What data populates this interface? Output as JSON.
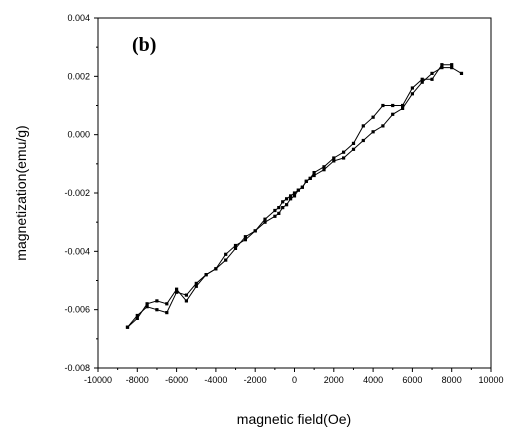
{
  "chart_data": {
    "type": "line",
    "panel_label": "(b)",
    "xlabel": "magnetic field(Oe)",
    "ylabel": "magnetization(emu/g)",
    "xlim": [
      -10000,
      10000
    ],
    "ylim": [
      -0.008,
      0.004
    ],
    "xticks": [
      -10000,
      -8000,
      -6000,
      -4000,
      -2000,
      0,
      2000,
      4000,
      6000,
      8000,
      10000
    ],
    "xtick_labels": [
      "-10000",
      "-8000",
      "-6000",
      "-4000",
      "-2000",
      "0",
      "2000",
      "4000",
      "6000",
      "8000",
      "10000"
    ],
    "yticks": [
      -0.008,
      -0.006,
      -0.004,
      -0.002,
      0.0,
      0.002,
      0.004
    ],
    "ytick_labels": [
      "-0.008",
      "-0.006",
      "-0.004",
      "-0.002",
      "0.000",
      "0.002",
      "0.004"
    ],
    "grid": false,
    "legend": false,
    "line_color": "#000000",
    "marker": "square",
    "series": [
      {
        "x": [
          -8500,
          -8000,
          -7500,
          -7000,
          -6500,
          -6000,
          -5500,
          -5000,
          -4500,
          -4000,
          -3500,
          -3000,
          -2500,
          -2000,
          -1500,
          -1000,
          -800,
          -600,
          -400,
          -200,
          0,
          200,
          400,
          600,
          800,
          1000,
          1500,
          2000,
          2500,
          3000,
          3500,
          4000,
          4500,
          5000,
          5500,
          6000,
          6500,
          7000,
          7500,
          8000,
          8500
        ],
        "y": [
          -0.0066,
          -0.0062,
          -0.0059,
          -0.006,
          -0.0061,
          -0.0054,
          -0.0055,
          -0.0051,
          -0.0048,
          -0.0046,
          -0.0041,
          -0.0038,
          -0.0036,
          -0.0033,
          -0.0029,
          -0.0026,
          -0.0025,
          -0.0023,
          -0.0022,
          -0.0021,
          -0.002,
          -0.0019,
          -0.0018,
          -0.0016,
          -0.0015,
          -0.0014,
          -0.0012,
          -0.0009,
          -0.0008,
          -0.0005,
          -0.0002,
          0.0001,
          0.0003,
          0.0007,
          0.0009,
          0.0014,
          0.0018,
          0.0021,
          0.0023,
          0.0023,
          0.0021
        ]
      },
      {
        "x": [
          8000,
          7500,
          7000,
          6500,
          6000,
          5500,
          5000,
          4500,
          4000,
          3500,
          3000,
          2500,
          2000,
          1500,
          1000,
          800,
          600,
          400,
          200,
          0,
          -200,
          -400,
          -600,
          -800,
          -1000,
          -1500,
          -2000,
          -2500,
          -3000,
          -3500,
          -4000,
          -4500,
          -5000,
          -5500,
          -6000,
          -6500,
          -7000,
          -7500,
          -8000,
          -8500
        ],
        "y": [
          0.0024,
          0.0024,
          0.0019,
          0.0019,
          0.0016,
          0.001,
          0.001,
          0.001,
          0.0006,
          0.0003,
          -0.0003,
          -0.0006,
          -0.0008,
          -0.0011,
          -0.0013,
          -0.0015,
          -0.0016,
          -0.0018,
          -0.0019,
          -0.0021,
          -0.0022,
          -0.0024,
          -0.0025,
          -0.0027,
          -0.0028,
          -0.003,
          -0.0033,
          -0.0035,
          -0.0039,
          -0.0043,
          -0.0046,
          -0.0048,
          -0.0052,
          -0.0057,
          -0.0053,
          -0.0058,
          -0.0057,
          -0.0058,
          -0.0063,
          -0.0066
        ]
      }
    ]
  }
}
